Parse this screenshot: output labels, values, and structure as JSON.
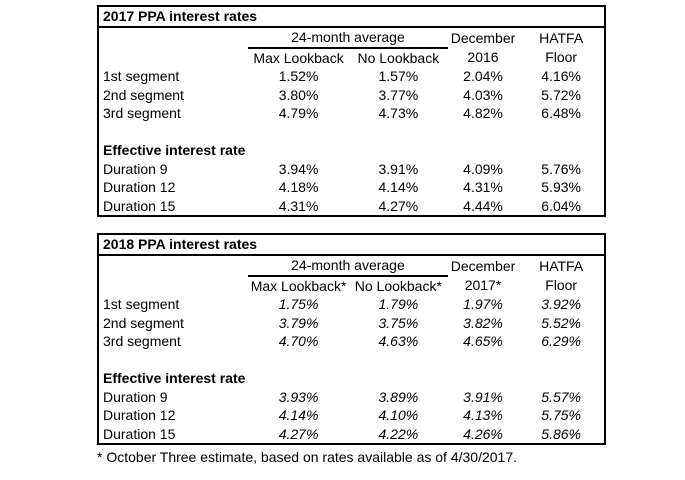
{
  "colors": {
    "text": "#000000",
    "background": "#ffffff",
    "border": "#000000"
  },
  "footnote": "* October Three estimate, based on rates available as of 4/30/2017.",
  "tables": [
    {
      "title": "2017 PPA interest rates",
      "group_header": "24-month average",
      "columns": {
        "sub1": "Max Lookback",
        "sub2": "No Lookback",
        "col4_line1": "December",
        "col4_line2": "2016",
        "col5_line1": "HATFA",
        "col5_line2": "Floor"
      },
      "segment_rows": [
        {
          "label": "1st segment",
          "values": [
            "1.52%",
            "1.57%",
            "2.04%",
            "4.16%"
          ]
        },
        {
          "label": "2nd segment",
          "values": [
            "3.80%",
            "3.77%",
            "4.03%",
            "5.72%"
          ]
        },
        {
          "label": "3rd segment",
          "values": [
            "4.79%",
            "4.73%",
            "4.82%",
            "6.48%"
          ]
        }
      ],
      "section_label": "Effective interest rate",
      "duration_rows": [
        {
          "label": "Duration 9",
          "values": [
            "3.94%",
            "3.91%",
            "4.09%",
            "5.76%"
          ]
        },
        {
          "label": "Duration 12",
          "values": [
            "4.18%",
            "4.14%",
            "4.31%",
            "5.93%"
          ]
        },
        {
          "label": "Duration 15",
          "values": [
            "4.31%",
            "4.27%",
            "4.44%",
            "6.04%"
          ]
        }
      ]
    },
    {
      "title": "2018 PPA interest rates",
      "group_header": "24-month average",
      "columns": {
        "sub1": "Max Lookback*",
        "sub2": "No Lookback*",
        "col4_line1": "December",
        "col4_line2": "2017*",
        "col5_line1": "HATFA",
        "col5_line2": "Floor"
      },
      "segment_rows": [
        {
          "label": "1st segment",
          "values": [
            "1.75%",
            "1.79%",
            "1.97%",
            "3.92%"
          ]
        },
        {
          "label": "2nd segment",
          "values": [
            "3.79%",
            "3.75%",
            "3.82%",
            "5.52%"
          ]
        },
        {
          "label": "3rd segment",
          "values": [
            "4.70%",
            "4.63%",
            "4.65%",
            "6.29%"
          ]
        }
      ],
      "section_label": "Effective interest rate",
      "duration_rows": [
        {
          "label": "Duration 9",
          "values": [
            "3.93%",
            "3.89%",
            "3.91%",
            "5.57%"
          ]
        },
        {
          "label": "Duration 12",
          "values": [
            "4.14%",
            "4.10%",
            "4.13%",
            "5.75%"
          ]
        },
        {
          "label": "Duration 15",
          "values": [
            "4.27%",
            "4.22%",
            "4.26%",
            "5.86%"
          ]
        }
      ]
    }
  ]
}
